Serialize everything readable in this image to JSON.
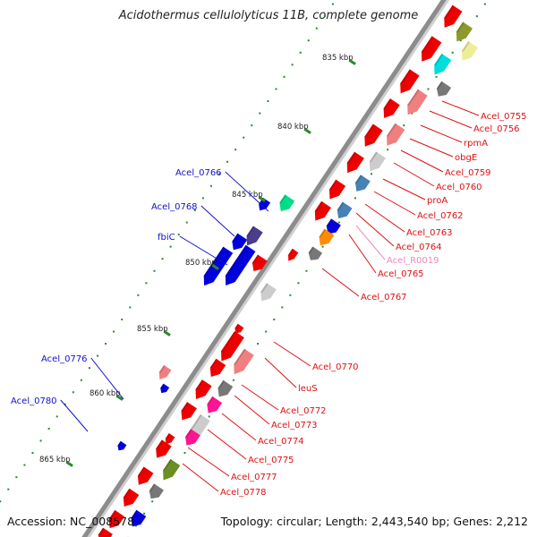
{
  "title": "Acidothermus cellulolyticus 11B, complete genome",
  "accession": "Accession: NC_008578",
  "topology": "Topology: circular; Length: 2,443,540 bp; Genes: 2,212",
  "colors": {
    "backbone": "#8c8c8c",
    "tick": "#2a8a2a",
    "label_red": "#dd1111",
    "label_blue": "#1111cc",
    "label_pink": "#ee88bb"
  },
  "kbp_marks": [
    {
      "label": "835 kbp"
    },
    {
      "label": "840 kbp"
    },
    {
      "label": "845 kbp"
    },
    {
      "label": "850 kbp"
    },
    {
      "label": "855 kbp"
    },
    {
      "label": "860 kbp"
    },
    {
      "label": "865 kbp"
    }
  ],
  "gene_labels": [
    {
      "name": "Acel_0755",
      "color": "red"
    },
    {
      "name": "Acel_0756",
      "color": "red"
    },
    {
      "name": "rpmA",
      "color": "red"
    },
    {
      "name": "obgE",
      "color": "red"
    },
    {
      "name": "Acel_0759",
      "color": "red"
    },
    {
      "name": "Acel_0760",
      "color": "red"
    },
    {
      "name": "proA",
      "color": "red"
    },
    {
      "name": "Acel_0762",
      "color": "red"
    },
    {
      "name": "Acel_0763",
      "color": "red"
    },
    {
      "name": "Acel_0764",
      "color": "red"
    },
    {
      "name": "Acel_R0019",
      "color": "pink"
    },
    {
      "name": "Acel_0765",
      "color": "red"
    },
    {
      "name": "Acel_0767",
      "color": "red"
    },
    {
      "name": "Acel_0770",
      "color": "red"
    },
    {
      "name": "leuS",
      "color": "red"
    },
    {
      "name": "Acel_0772",
      "color": "red"
    },
    {
      "name": "Acel_0773",
      "color": "red"
    },
    {
      "name": "Acel_0774",
      "color": "red"
    },
    {
      "name": "Acel_0775",
      "color": "red"
    },
    {
      "name": "Acel_0777",
      "color": "red"
    },
    {
      "name": "Acel_0778",
      "color": "red"
    },
    {
      "name": "Acel_0766",
      "color": "blue"
    },
    {
      "name": "Acel_0768",
      "color": "blue"
    },
    {
      "name": "fbiC",
      "color": "blue"
    },
    {
      "name": "Acel_0776",
      "color": "blue"
    },
    {
      "name": "Acel_0780",
      "color": "blue"
    }
  ]
}
